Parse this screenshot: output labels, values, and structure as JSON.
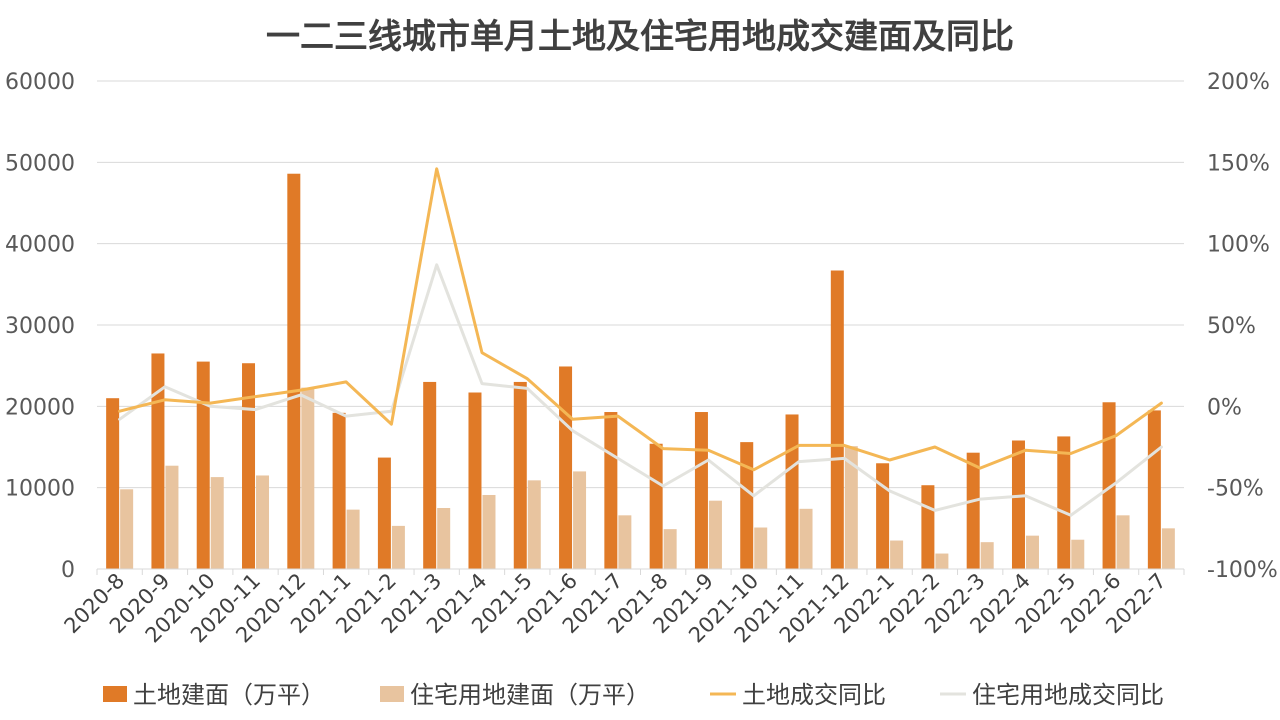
{
  "chart_data": {
    "type": "bar",
    "title": "一二三线城市单月土地及住宅用地成交建面及同比",
    "categories": [
      "2020-8",
      "2020-9",
      "2020-10",
      "2020-11",
      "2020-12",
      "2021-1",
      "2021-2",
      "2021-3",
      "2021-4",
      "2021-5",
      "2021-6",
      "2021-7",
      "2021-8",
      "2021-9",
      "2021-10",
      "2021-11",
      "2021-12",
      "2022-1",
      "2022-2",
      "2022-3",
      "2022-4",
      "2022-5",
      "2022-6",
      "2022-7"
    ],
    "y_left": {
      "ylim": [
        0,
        60000
      ],
      "ticks": [
        "0",
        "10000",
        "20000",
        "30000",
        "40000",
        "50000",
        "60000"
      ],
      "tick_values": [
        0,
        10000,
        20000,
        30000,
        40000,
        50000,
        60000
      ]
    },
    "y_right": {
      "ylim": [
        -100,
        200
      ],
      "ticks": [
        "-100%",
        "-50%",
        "0%",
        "50%",
        "100%",
        "150%",
        "200%"
      ],
      "tick_values": [
        -100,
        -50,
        0,
        50,
        100,
        150,
        200
      ]
    },
    "series": [
      {
        "name": "土地建面（万平）",
        "type": "bar",
        "axis": "left",
        "color": "#E07A27",
        "values": [
          21000,
          26500,
          25500,
          25300,
          48600,
          19200,
          13700,
          23000,
          21700,
          23000,
          24900,
          19300,
          15400,
          19300,
          15600,
          19000,
          36700,
          13000,
          10300,
          14300,
          15800,
          16300,
          20500,
          19500
        ]
      },
      {
        "name": "住宅用地建面（万平）",
        "type": "bar",
        "axis": "left",
        "color": "#E8C49F",
        "values": [
          9800,
          12700,
          11300,
          11500,
          22300,
          7300,
          5300,
          7500,
          9100,
          10900,
          12000,
          6600,
          4900,
          8400,
          5100,
          7400,
          15100,
          3500,
          1900,
          3300,
          4100,
          3600,
          6600,
          5000
        ]
      },
      {
        "name": "土地成交同比",
        "type": "line",
        "axis": "right",
        "color": "#F4B755",
        "values": [
          -3,
          4,
          2,
          6,
          10,
          15,
          -11,
          146,
          33,
          17,
          -8,
          -6,
          -26,
          -27,
          -39,
          -24,
          -24,
          -33,
          -25,
          -38,
          -27,
          -29,
          -18,
          2
        ]
      },
      {
        "name": "住宅用地成交同比",
        "type": "line",
        "axis": "right",
        "color": "#E3E3DE",
        "values": [
          -8,
          12,
          0,
          -2,
          7,
          -6,
          -3,
          87,
          14,
          11,
          -15,
          -32,
          -49,
          -33,
          -55,
          -34,
          -32,
          -52,
          -64,
          -57,
          -55,
          -67,
          -47,
          -25
        ]
      }
    ],
    "legend": {
      "position": "bottom"
    },
    "grid": true
  }
}
